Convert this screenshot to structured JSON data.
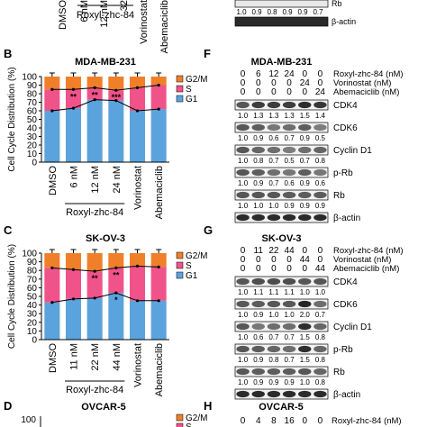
{
  "colors": {
    "g2m": "#f07f2a",
    "s": "#f0538a",
    "g1": "#5ba3dd",
    "band": "#1a1a1a",
    "marker": "#000000"
  },
  "top_fragment": {
    "x_labels": [
      "DMSO",
      "6 nM",
      "12 nM",
      "32"
    ],
    "x_labels_tail": [
      "Vorinostat",
      "Abemaciclib"
    ],
    "group_label": "Roxyl-zhc-84",
    "blot_values": [
      "1.0",
      "0.9",
      "0.8",
      "0.9",
      "0.9",
      "0.7"
    ],
    "blot_rows": [
      "Rb",
      "β-actin"
    ]
  },
  "panel_b": {
    "letter": "B"
  },
  "panel_c": {
    "letter": "C"
  },
  "panel_d": {
    "letter": "D",
    "title": "OVCAR-5",
    "y_tick": "100",
    "legend": [
      "G2/M",
      "S"
    ]
  },
  "panel_f": {
    "letter": "F",
    "title": "MDA-MB-231",
    "treat_rows": [
      {
        "values": [
          "0",
          "6",
          "12",
          "24",
          "0",
          "0"
        ],
        "label": "Roxyl-zhc-84 (nM)"
      },
      {
        "values": [
          "0",
          "0",
          "0",
          "0",
          "24",
          "0"
        ],
        "label": "Vorinostat (nM)"
      },
      {
        "values": [
          "0",
          "0",
          "0",
          "0",
          "0",
          "24"
        ],
        "label": "Abemaciclib (nM)"
      }
    ],
    "blots": [
      {
        "name": "CDK4",
        "values": [
          "1.0",
          "1.3",
          "1.3",
          "1.3",
          "1.5",
          "1.4"
        ]
      },
      {
        "name": "CDK6",
        "values": [
          "1.0",
          "0.9",
          "0.6",
          "0.7",
          "0.9",
          "0.5"
        ]
      },
      {
        "name": "Cyclin D1",
        "values": [
          "1.0",
          "0.8",
          "0.7",
          "0.5",
          "0.7",
          "0.8"
        ]
      },
      {
        "name": "p-Rb",
        "values": [
          "1.0",
          "0.9",
          "0.7",
          "0.6",
          "0.9",
          "0.6"
        ]
      },
      {
        "name": "Rb",
        "values": [
          "1.0",
          "1.0",
          "1.0",
          "0.9",
          "0.9",
          "0.9"
        ]
      },
      {
        "name": "β-actin",
        "values": []
      }
    ]
  },
  "panel_g": {
    "letter": "G",
    "title": "SK-OV-3",
    "treat_rows": [
      {
        "values": [
          "0",
          "11",
          "22",
          "44",
          "0",
          "0"
        ],
        "label": "Roxyl-zhc-84 (nM)"
      },
      {
        "values": [
          "0",
          "0",
          "0",
          "0",
          "44",
          "0"
        ],
        "label": "Vorinostat (nM)"
      },
      {
        "values": [
          "0",
          "0",
          "0",
          "0",
          "0",
          "44"
        ],
        "label": "Abemaciclib (nM)"
      }
    ],
    "blots": [
      {
        "name": "CDK4",
        "values": [
          "1.0",
          "1.1",
          "1.1",
          "1.1",
          "1.0",
          "1.0"
        ]
      },
      {
        "name": "CDK6",
        "values": [
          "1.0",
          "0.9",
          "1.0",
          "1.0",
          "2.0",
          "0.7"
        ]
      },
      {
        "name": "Cyclin D1",
        "values": [
          "1.0",
          "0.6",
          "0.7",
          "0.7",
          "1.5",
          "0.8"
        ]
      },
      {
        "name": "p-Rb",
        "values": [
          "1.0",
          "0.9",
          "0.8",
          "0.7",
          "1.5",
          "0.8"
        ]
      },
      {
        "name": "Rb",
        "values": [
          "1.0",
          "0.9",
          "0.9",
          "0.9",
          "1.0",
          "0.8"
        ]
      },
      {
        "name": "β-actin",
        "values": []
      }
    ]
  },
  "panel_h": {
    "letter": "H",
    "title": "OVCAR-5",
    "treat_row": {
      "values": [
        "0",
        "4",
        "8",
        "16",
        "0",
        "0"
      ],
      "label": "Roxyl-zhc-84 (nM)"
    }
  },
  "chart_data": [
    {
      "type": "bar",
      "title": "MDA-MB-231",
      "ylabel": "Cell Cycle Distribution (%)",
      "ylim": [
        0,
        100
      ],
      "yticks": [
        0,
        10,
        20,
        30,
        40,
        50,
        60,
        70,
        80,
        90,
        100
      ],
      "categories": [
        "DMSO",
        "6 nM",
        "12 nM",
        "24 nM",
        "Vorinostat",
        "Abemaciclib"
      ],
      "group_label": "Roxyl-zhc-84",
      "group_span": [
        1,
        3
      ],
      "legend": "top-right",
      "stacked": true,
      "series": [
        {
          "name": "G1",
          "values": [
            60,
            63,
            73,
            72,
            60,
            62
          ]
        },
        {
          "name": "S",
          "values": [
            25,
            22,
            14,
            12,
            27,
            28
          ]
        },
        {
          "name": "G2/M",
          "values": [
            15,
            15,
            13,
            16,
            13,
            10
          ]
        }
      ],
      "annotations": [
        "",
        "**",
        "**",
        "***",
        "",
        ""
      ]
    },
    {
      "type": "bar",
      "title": "SK-OV-3",
      "ylabel": "Cell Cycle Distribution (%)",
      "ylim": [
        0,
        100
      ],
      "yticks": [
        0,
        10,
        20,
        30,
        40,
        50,
        60,
        70,
        80,
        90,
        100
      ],
      "categories": [
        "DMSO",
        "11 nM",
        "22 nM",
        "44 nM",
        "Vorinostat",
        "Abemaciclib"
      ],
      "group_label": "Roxyl-zhc-84",
      "group_span": [
        1,
        3
      ],
      "legend": "top-right",
      "stacked": true,
      "series": [
        {
          "name": "G1",
          "values": [
            43,
            47,
            48,
            54,
            45,
            45
          ]
        },
        {
          "name": "S",
          "values": [
            40,
            34,
            31,
            29,
            40,
            39
          ]
        },
        {
          "name": "G2/M",
          "values": [
            17,
            19,
            21,
            17,
            15,
            16
          ]
        }
      ],
      "annotations": [
        "",
        "",
        "**",
        "**",
        "",
        ""
      ],
      "g1_annotations": [
        "",
        "",
        "",
        "*",
        "",
        ""
      ]
    }
  ]
}
